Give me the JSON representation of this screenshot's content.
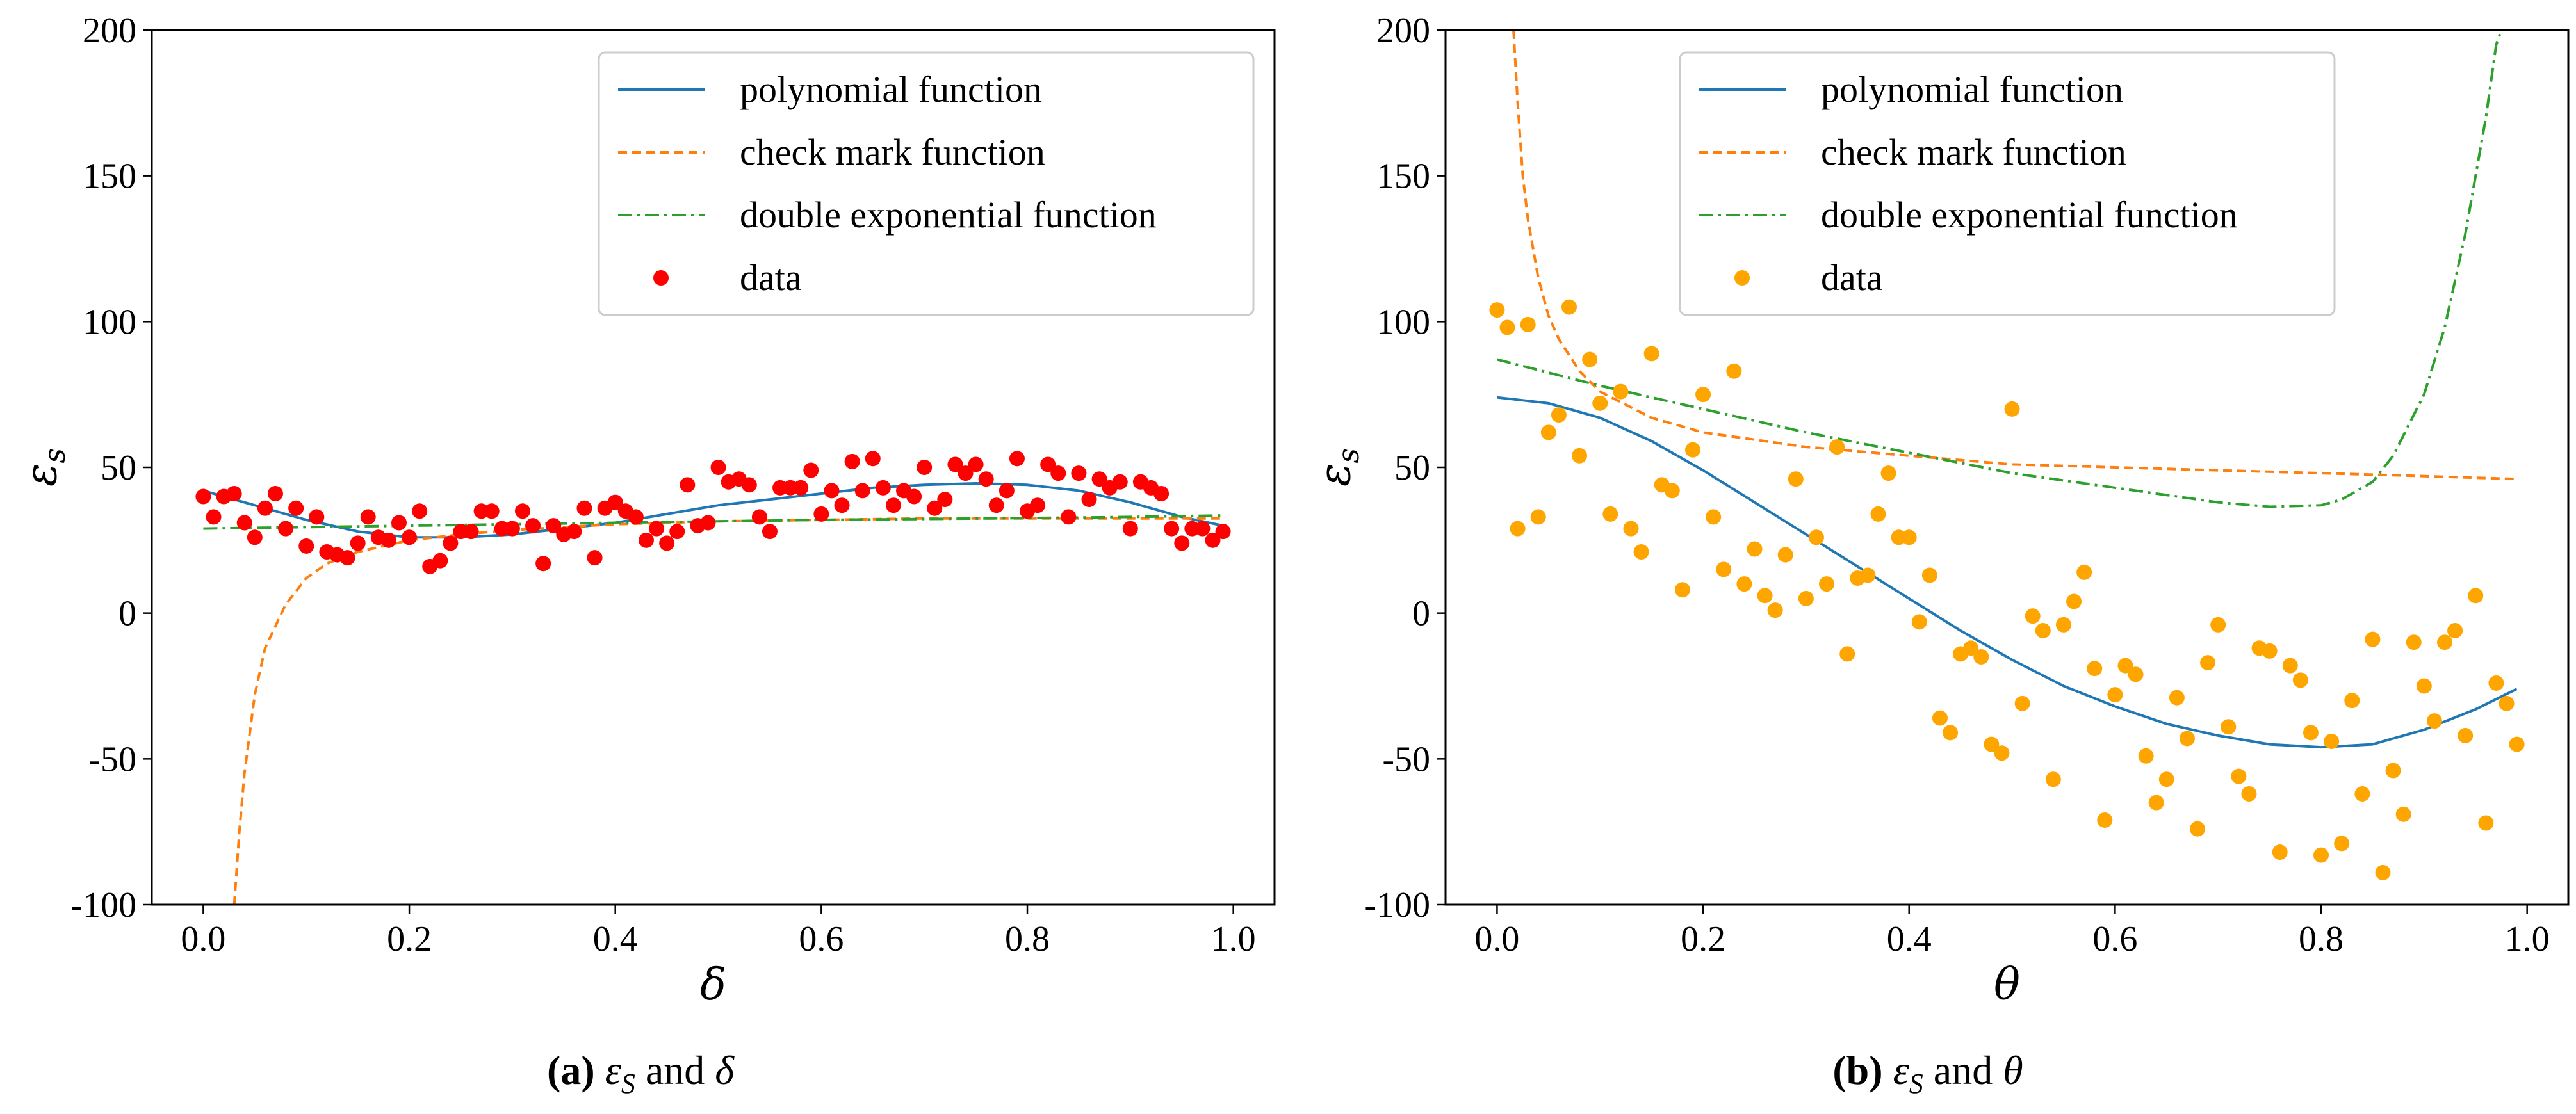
{
  "colors": {
    "polynomial": "#1f77b4",
    "check_mark": "#ff7f0e",
    "double_exp": "#2ca02c",
    "data_a": "#ff0000",
    "data_b": "#ffa500"
  },
  "captions": [
    {
      "letter": "(a)",
      "eps": "ε",
      "sub": "S",
      "text": " and ",
      "var": "δ"
    },
    {
      "letter": "(b)",
      "eps": "ε",
      "sub": "S",
      "text": " and ",
      "var": "θ"
    }
  ],
  "chart_data": [
    {
      "type": "scatter",
      "xlabel": "δ",
      "ylabel": "ε_s",
      "xlim": [
        -0.05,
        1.04
      ],
      "ylim": [
        -100,
        200
      ],
      "xticks": [
        "0.0",
        "0.2",
        "0.4",
        "0.6",
        "0.8",
        "1.0"
      ],
      "yticks": [
        "-100",
        "-50",
        "0",
        "50",
        "100",
        "150",
        "200"
      ],
      "legend_position": "upper-right",
      "legend": [
        "polynomial function",
        "check mark function",
        "double exponential function",
        "data"
      ],
      "series": [
        {
          "name": "polynomial function",
          "style": "solid",
          "x": [
            0.0,
            0.05,
            0.1,
            0.15,
            0.2,
            0.25,
            0.3,
            0.35,
            0.4,
            0.45,
            0.5,
            0.55,
            0.6,
            0.65,
            0.7,
            0.75,
            0.8,
            0.85,
            0.9,
            0.95,
            0.99
          ],
          "y": [
            42,
            37,
            32,
            28,
            26,
            26,
            27,
            29,
            31,
            34,
            37,
            39,
            41,
            43,
            44,
            44.5,
            44,
            42,
            38,
            33,
            30
          ]
        },
        {
          "name": "check mark function",
          "style": "dashed",
          "x": [
            0.03,
            0.035,
            0.04,
            0.05,
            0.06,
            0.08,
            0.1,
            0.12,
            0.15,
            0.2,
            0.25,
            0.3,
            0.4,
            0.5,
            0.6,
            0.7,
            0.8,
            0.9,
            0.99
          ],
          "y": [
            -100,
            -75,
            -55,
            -28,
            -12,
            3,
            12,
            17,
            21,
            25,
            27,
            28.5,
            30.5,
            31.5,
            32,
            32.5,
            32.5,
            32.5,
            32.5
          ]
        },
        {
          "name": "double exponential function",
          "style": "dashdot",
          "x": [
            0.0,
            0.1,
            0.2,
            0.3,
            0.4,
            0.5,
            0.6,
            0.7,
            0.8,
            0.9,
            0.99
          ],
          "y": [
            29,
            29.5,
            30,
            30.5,
            31,
            31.5,
            32,
            32.3,
            32.6,
            33,
            33.5
          ]
        },
        {
          "name": "data",
          "style": "markers",
          "x": [
            0.0,
            0.01,
            0.02,
            0.03,
            0.04,
            0.05,
            0.06,
            0.07,
            0.08,
            0.09,
            0.1,
            0.11,
            0.12,
            0.13,
            0.14,
            0.15,
            0.16,
            0.17,
            0.18,
            0.19,
            0.2,
            0.21,
            0.22,
            0.23,
            0.24,
            0.25,
            0.26,
            0.27,
            0.28,
            0.29,
            0.3,
            0.31,
            0.32,
            0.33,
            0.34,
            0.35,
            0.36,
            0.37,
            0.38,
            0.39,
            0.4,
            0.41,
            0.42,
            0.43,
            0.44,
            0.45,
            0.46,
            0.47,
            0.48,
            0.49,
            0.5,
            0.51,
            0.52,
            0.53,
            0.54,
            0.55,
            0.56,
            0.57,
            0.58,
            0.59,
            0.6,
            0.61,
            0.62,
            0.63,
            0.64,
            0.65,
            0.66,
            0.67,
            0.68,
            0.69,
            0.7,
            0.71,
            0.72,
            0.73,
            0.74,
            0.75,
            0.76,
            0.77,
            0.78,
            0.79,
            0.8,
            0.81,
            0.82,
            0.83,
            0.84,
            0.85,
            0.86,
            0.87,
            0.88,
            0.89,
            0.9,
            0.91,
            0.92,
            0.93,
            0.94,
            0.95,
            0.96,
            0.97,
            0.98,
            0.99
          ],
          "y": [
            40,
            33,
            40,
            41,
            31,
            26,
            36,
            41,
            29,
            36,
            23,
            33,
            21,
            20,
            19,
            24,
            33,
            26,
            25,
            31,
            26,
            35,
            16,
            18,
            24,
            28,
            28,
            35,
            35,
            29,
            29,
            35,
            30,
            17,
            30,
            27,
            28,
            36,
            19,
            36,
            38,
            35,
            33,
            25,
            29,
            24,
            28,
            44,
            30,
            31,
            50,
            45,
            46,
            44,
            33,
            28,
            43,
            43,
            43,
            49,
            34,
            42,
            37,
            52,
            42,
            53,
            43,
            37,
            42,
            40,
            50,
            36,
            39,
            51,
            48,
            51,
            46,
            37,
            42,
            53,
            35,
            37,
            51,
            48,
            33,
            48,
            39,
            46,
            43,
            45,
            29,
            45,
            43,
            41,
            29,
            24,
            29,
            29,
            25,
            28
          ]
        }
      ]
    },
    {
      "type": "scatter",
      "xlabel": "θ",
      "ylabel": "ε_s",
      "xlim": [
        -0.05,
        1.04
      ],
      "ylim": [
        -100,
        200
      ],
      "xticks": [
        "0.0",
        "0.2",
        "0.4",
        "0.6",
        "0.8",
        "1.0"
      ],
      "yticks": [
        "-100",
        "-50",
        "0",
        "50",
        "100",
        "150",
        "200"
      ],
      "legend_position": "upper-right",
      "legend": [
        "polynomial function",
        "check mark function",
        "double exponential function",
        "data"
      ],
      "series": [
        {
          "name": "polynomial function",
          "style": "solid",
          "x": [
            0.0,
            0.05,
            0.1,
            0.15,
            0.2,
            0.25,
            0.3,
            0.35,
            0.4,
            0.45,
            0.5,
            0.55,
            0.6,
            0.65,
            0.7,
            0.75,
            0.8,
            0.85,
            0.9,
            0.95,
            0.99
          ],
          "y": [
            74,
            72,
            67,
            59,
            49,
            38,
            27,
            16,
            5,
            -6,
            -16,
            -25,
            -32,
            -38,
            -42,
            -45,
            -46,
            -45,
            -40,
            -33,
            -26
          ]
        },
        {
          "name": "check mark function",
          "style": "dashed",
          "x": [
            0.016,
            0.02,
            0.025,
            0.03,
            0.04,
            0.05,
            0.06,
            0.08,
            0.1,
            0.15,
            0.2,
            0.3,
            0.4,
            0.5,
            0.6,
            0.7,
            0.8,
            0.9,
            0.99
          ],
          "y": [
            200,
            175,
            150,
            135,
            115,
            102,
            94,
            83,
            76,
            67,
            62,
            57,
            54,
            51,
            50,
            49,
            48,
            47,
            46
          ]
        },
        {
          "name": "double exponential function",
          "style": "dashdot",
          "x": [
            0.0,
            0.1,
            0.2,
            0.3,
            0.4,
            0.5,
            0.6,
            0.7,
            0.75,
            0.8,
            0.82,
            0.85,
            0.87,
            0.9,
            0.92,
            0.94,
            0.96,
            0.97,
            0.975
          ],
          "y": [
            87,
            78,
            70,
            62,
            55,
            48,
            43,
            38,
            36.5,
            37,
            39,
            45,
            54,
            75,
            98,
            130,
            170,
            195,
            200
          ]
        },
        {
          "name": "data",
          "style": "markers",
          "x": [
            0.0,
            0.01,
            0.02,
            0.03,
            0.04,
            0.05,
            0.06,
            0.07,
            0.08,
            0.09,
            0.1,
            0.11,
            0.12,
            0.13,
            0.14,
            0.15,
            0.16,
            0.17,
            0.18,
            0.19,
            0.2,
            0.21,
            0.22,
            0.23,
            0.24,
            0.25,
            0.26,
            0.27,
            0.28,
            0.29,
            0.3,
            0.31,
            0.32,
            0.33,
            0.34,
            0.35,
            0.36,
            0.37,
            0.38,
            0.39,
            0.4,
            0.41,
            0.42,
            0.43,
            0.44,
            0.45,
            0.46,
            0.47,
            0.48,
            0.49,
            0.5,
            0.51,
            0.52,
            0.53,
            0.54,
            0.55,
            0.56,
            0.57,
            0.58,
            0.59,
            0.6,
            0.61,
            0.62,
            0.63,
            0.64,
            0.65,
            0.66,
            0.67,
            0.68,
            0.69,
            0.7,
            0.71,
            0.72,
            0.73,
            0.74,
            0.75,
            0.76,
            0.77,
            0.78,
            0.79,
            0.8,
            0.81,
            0.82,
            0.83,
            0.84,
            0.85,
            0.86,
            0.87,
            0.88,
            0.89,
            0.9,
            0.91,
            0.92,
            0.93,
            0.94,
            0.95,
            0.96,
            0.97,
            0.98,
            0.99
          ],
          "y": [
            104,
            98,
            29,
            99,
            33,
            62,
            68,
            105,
            54,
            87,
            72,
            34,
            76,
            29,
            21,
            89,
            44,
            42,
            8,
            56,
            75,
            33,
            15,
            83,
            10,
            22,
            6,
            1,
            20,
            46,
            5,
            26,
            10,
            57,
            -14,
            12,
            13,
            34,
            48,
            26,
            26,
            -3,
            13,
            -36,
            -41,
            -14,
            -12,
            -15,
            -45,
            -48,
            70,
            -31,
            -1,
            -6,
            -57,
            -4,
            4,
            14,
            -19,
            -71,
            -28,
            -18,
            -21,
            -49,
            -65,
            -57,
            -29,
            -43,
            -74,
            -17,
            -4,
            -39,
            -56,
            -62,
            -12,
            -13,
            -82,
            -18,
            -23,
            -41,
            -83,
            -44,
            -79,
            -30,
            -62,
            -9,
            -89,
            -54,
            -69,
            -10,
            -25,
            -37,
            -10,
            -6,
            -42,
            6,
            -72,
            -24,
            -31,
            -45
          ]
        }
      ]
    }
  ]
}
